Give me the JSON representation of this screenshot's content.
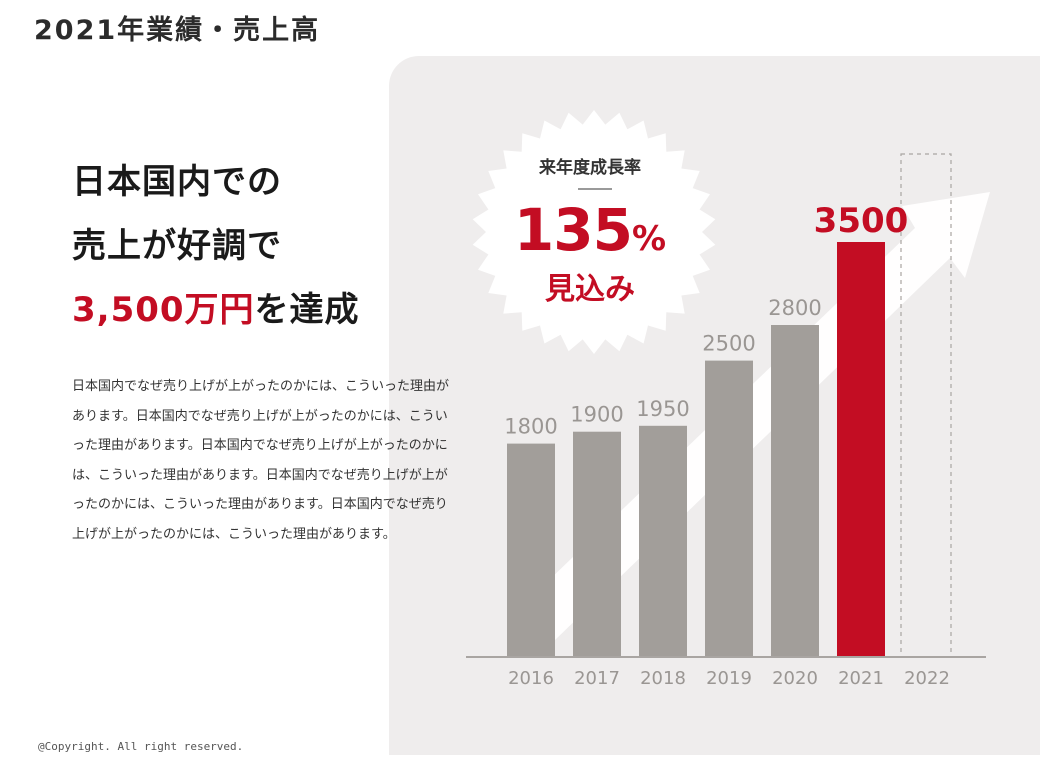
{
  "page_title": "2021年業績・売上高",
  "headline": {
    "line1": "日本国内での",
    "line2": "売上が好調で",
    "line3_accent": "3,500万円",
    "line3_rest": "を達成"
  },
  "body_text": "日本国内でなぜ売り上げが上がったのかには、こういった理由があります。日本国内でなぜ売り上げが上がったのかには、こういった理由があります。日本国内でなぜ売り上げが上がったのかには、こういった理由があります。日本国内でなぜ売り上げが上がったのかには、こういった理由があります。日本国内でなぜ売り上げが上がったのかには、こういった理由があります。",
  "badge": {
    "label": "来年度成長率",
    "value": "135",
    "unit": "%",
    "sub": "見込み"
  },
  "copyright": "@Copyright. All right reserved.",
  "colors": {
    "accent": "#c30d23",
    "bar": "#a29e9a",
    "panel": "#efeded",
    "label": "#9a9693"
  },
  "chart_data": {
    "type": "bar",
    "categories": [
      "2016",
      "2017",
      "2018",
      "2019",
      "2020",
      "2021",
      "2022"
    ],
    "values": [
      1800,
      1900,
      1950,
      2500,
      2800,
      3500,
      null
    ],
    "highlight": "2021",
    "placeholder": "2022",
    "data_labels": [
      "1800",
      "1900",
      "1950",
      "2500",
      "2800",
      "3500",
      ""
    ],
    "title": "",
    "xlabel": "",
    "ylabel": "",
    "grid": false,
    "legend": "none",
    "growth_arrow": true
  }
}
